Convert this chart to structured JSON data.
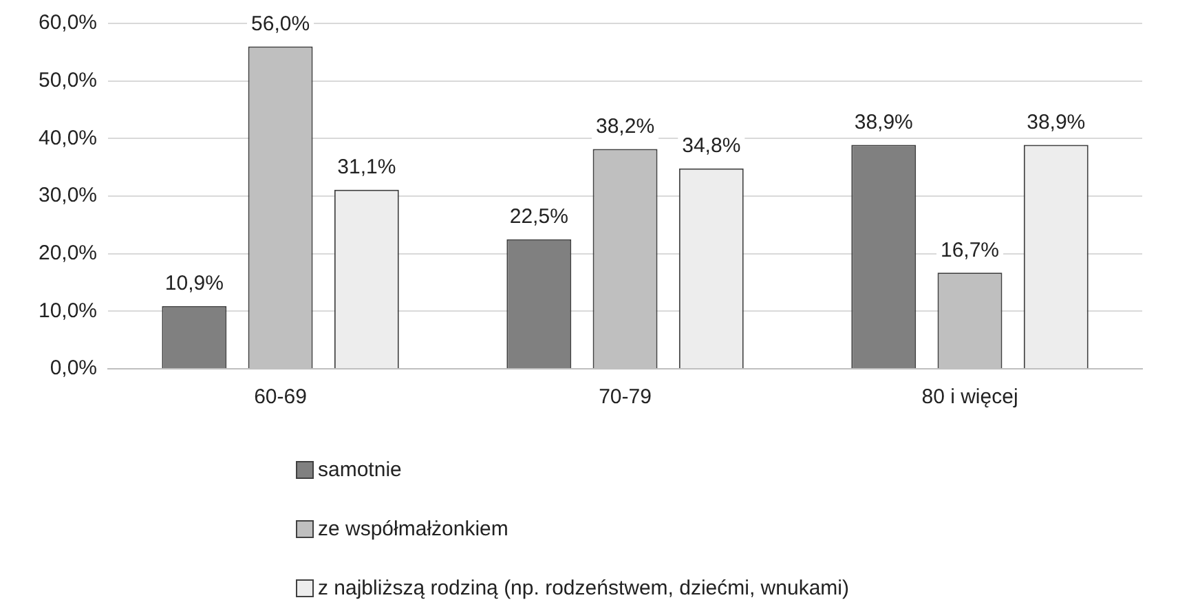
{
  "chart_data": {
    "type": "bar",
    "categories": [
      "60-69",
      "70-79",
      "80 i więcej"
    ],
    "series": [
      {
        "name": "samotnie",
        "color": "#808080",
        "values": [
          10.9,
          22.5,
          38.9
        ],
        "value_labels": [
          "10,9%",
          "22,5%",
          "38,9%"
        ]
      },
      {
        "name": "ze współmałżonkiem",
        "color": "#bfbfbf",
        "values": [
          56.0,
          38.2,
          16.7
        ],
        "value_labels": [
          "56,0%",
          "38,2%",
          "16,7%"
        ]
      },
      {
        "name": "z najbliższą rodziną (np.  rodzeństwem, dziećmi, wnukami)",
        "color": "#ededed",
        "values": [
          31.1,
          34.8,
          38.9
        ],
        "value_labels": [
          "31,1%",
          "34,8%",
          "38,9%"
        ]
      }
    ],
    "ylim": [
      0,
      60
    ],
    "yticks": [
      {
        "value": 0,
        "label": "0,0%"
      },
      {
        "value": 10,
        "label": "10,0%"
      },
      {
        "value": 20,
        "label": "20,0%"
      },
      {
        "value": 30,
        "label": "30,0%"
      },
      {
        "value": 40,
        "label": "40,0%"
      },
      {
        "value": 50,
        "label": "50,0%"
      },
      {
        "value": 60,
        "label": "60,0%"
      }
    ],
    "grid": "y",
    "legend": "bottom"
  }
}
